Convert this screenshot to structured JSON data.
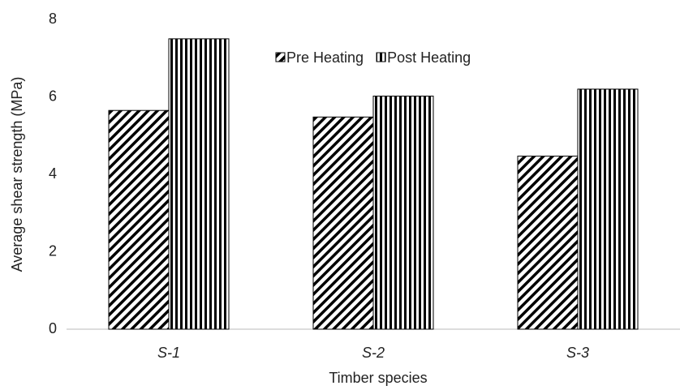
{
  "chart_data": {
    "type": "bar",
    "x_label": "Timber species",
    "y_label": "Average shear strength (MPa)",
    "categories": [
      "S-1",
      "S-2",
      "S-3"
    ],
    "series": [
      {
        "name": "Pre Heating",
        "color": "#000000",
        "pattern": "diagonal",
        "values": [
          5.65,
          5.48,
          4.47
        ]
      },
      {
        "name": "Post Heating",
        "color": "#000000",
        "pattern": "vertical",
        "values": [
          7.5,
          6.02,
          6.2
        ]
      }
    ],
    "ylim": [
      0,
      8
    ],
    "yticks": [
      0,
      2,
      4,
      6,
      8
    ],
    "grid": false,
    "legend": "top"
  }
}
